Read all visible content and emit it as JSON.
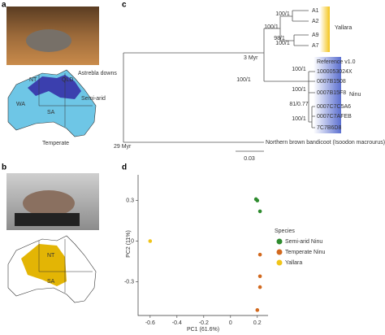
{
  "panel_labels": [
    "a",
    "b",
    "c",
    "d"
  ],
  "map_a": {
    "labels": [
      "NT",
      "QLD",
      "Astrebla downs",
      "Semi-arid",
      "WA",
      "SA",
      "Temperate"
    ]
  },
  "map_b": {
    "labels": [
      "NT",
      "SA"
    ]
  },
  "tree": {
    "clades": [
      {
        "name": "Yallara",
        "leaves": [
          "A1",
          "A2",
          "A9",
          "A7"
        ]
      },
      {
        "name": "Ninu",
        "reference": "Reference v1.0",
        "leaves": [
          "1000053024X",
          "0007B1508",
          "0007B15F8",
          "0007C7C5A6",
          "0007C7AFEB",
          "7C7B6D8"
        ]
      }
    ],
    "outgroup": "Northern brown bandicoot (Isoodon macrourus)",
    "node_ages": [
      "3 Myr",
      "29 Myr"
    ],
    "scale": "0.03",
    "supports": [
      "100/1",
      "100/1",
      "100/1",
      "98/1",
      "100/1",
      "100/1",
      "100/1",
      "81/0.77",
      "100/1"
    ]
  },
  "pca": {
    "type": "scatter",
    "x_label": "PC1 (61.6%)",
    "y_label": "PC2 (11%)",
    "xlim": [
      -0.69,
      0.28
    ],
    "ylim": [
      -0.55,
      0.49
    ],
    "xticks": [
      -0.6,
      -0.4,
      -0.2,
      0,
      0.2
    ],
    "yticks": [
      -0.3,
      0,
      0.3
    ],
    "legend_title": "Species",
    "series": [
      {
        "name": "Semi-arid Ninu",
        "color": "#2e8b2e",
        "x": [
          0.19,
          0.2,
          0.22
        ],
        "values": [
          0.31,
          0.3,
          0.22
        ]
      },
      {
        "name": "Temperate Ninu",
        "color": "#d2691e",
        "x": [
          0.22,
          0.22,
          0.22,
          0.2
        ],
        "values": [
          -0.1,
          -0.26,
          -0.34,
          -0.51
        ]
      },
      {
        "name": "Yallara",
        "color": "#f0c419",
        "x": [
          -0.6
        ],
        "values": [
          0
        ]
      }
    ]
  }
}
